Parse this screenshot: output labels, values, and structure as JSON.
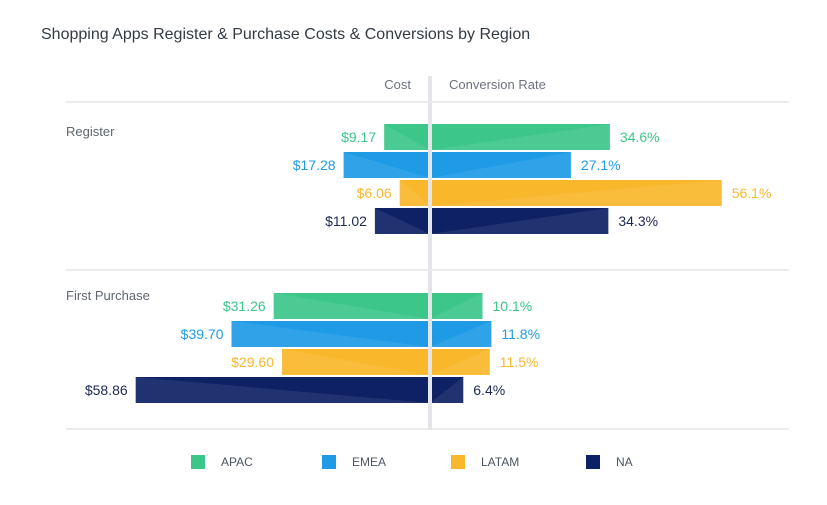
{
  "chart_data": {
    "type": "bar",
    "title": "Shopping Apps Register & Purchase Costs & Conversions by Region",
    "left_header": "Cost",
    "right_header": "Conversion Rate",
    "groups": [
      {
        "label": "Register",
        "rows": [
          {
            "series": "APAC",
            "cost": 9.17,
            "cost_label": "$9.17",
            "rate": 34.6,
            "rate_label": "34.6%"
          },
          {
            "series": "EMEA",
            "cost": 17.28,
            "cost_label": "$17.28",
            "rate": 27.1,
            "rate_label": "27.1%"
          },
          {
            "series": "LATAM",
            "cost": 6.06,
            "cost_label": "$6.06",
            "rate": 56.1,
            "rate_label": "56.1%"
          },
          {
            "series": "NA",
            "cost": 11.02,
            "cost_label": "$11.02",
            "rate": 34.3,
            "rate_label": "34.3%"
          }
        ]
      },
      {
        "label": "First Purchase",
        "rows": [
          {
            "series": "APAC",
            "cost": 31.26,
            "cost_label": "$31.26",
            "rate": 10.1,
            "rate_label": "10.1%"
          },
          {
            "series": "EMEA",
            "cost": 39.7,
            "cost_label": "$39.70",
            "rate": 11.8,
            "rate_label": "11.8%"
          },
          {
            "series": "LATAM",
            "cost": 29.6,
            "cost_label": "$29.60",
            "rate": 11.5,
            "rate_label": "11.5%"
          },
          {
            "series": "NA",
            "cost": 58.86,
            "cost_label": "$58.86",
            "rate": 6.4,
            "rate_label": "6.4%"
          }
        ]
      }
    ],
    "legend": [
      {
        "name": "APAC",
        "color": "#3cc68a"
      },
      {
        "name": "EMEA",
        "color": "#1f9be6"
      },
      {
        "name": "LATAM",
        "color": "#f9b82b"
      },
      {
        "name": "NA",
        "color": "#0e2164"
      }
    ],
    "legend_position": "bottom",
    "grid": false
  }
}
